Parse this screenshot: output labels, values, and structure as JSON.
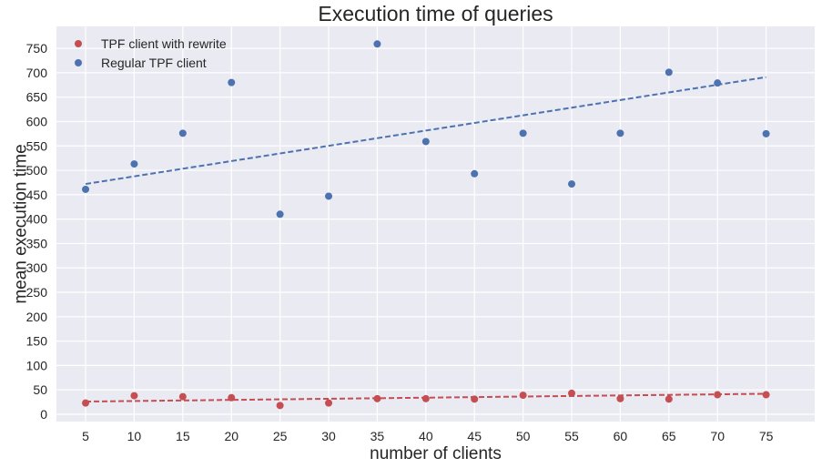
{
  "chart_data": {
    "type": "scatter",
    "title": "Execution time of queries",
    "xlabel": "number of clients",
    "ylabel": "mean execution time",
    "x": [
      5,
      10,
      15,
      20,
      25,
      30,
      35,
      40,
      45,
      50,
      55,
      60,
      65,
      70,
      75
    ],
    "xlim": [
      2,
      80
    ],
    "ylim": [
      -15,
      795
    ],
    "xticks": [
      5,
      10,
      15,
      20,
      25,
      30,
      35,
      40,
      45,
      50,
      55,
      60,
      65,
      70,
      75
    ],
    "yticks": [
      0,
      50,
      100,
      150,
      200,
      250,
      300,
      350,
      400,
      450,
      500,
      550,
      600,
      650,
      700,
      750
    ],
    "grid": true,
    "background_color": "#eaeaf2",
    "legend_position": "top-left",
    "series": [
      {
        "name": "TPF client with rewrite",
        "color": "#c44e52",
        "values": [
          23,
          38,
          36,
          34,
          18,
          23,
          32,
          32,
          31,
          39,
          43,
          32,
          31,
          40,
          40
        ],
        "trend": [
          26,
          42
        ]
      },
      {
        "name": "Regular TPF client",
        "color": "#4c72b0",
        "values": [
          461,
          513,
          576,
          680,
          410,
          447,
          759,
          559,
          493,
          576,
          472,
          576,
          701,
          679,
          575
        ],
        "trend": [
          472,
          691
        ]
      }
    ]
  }
}
